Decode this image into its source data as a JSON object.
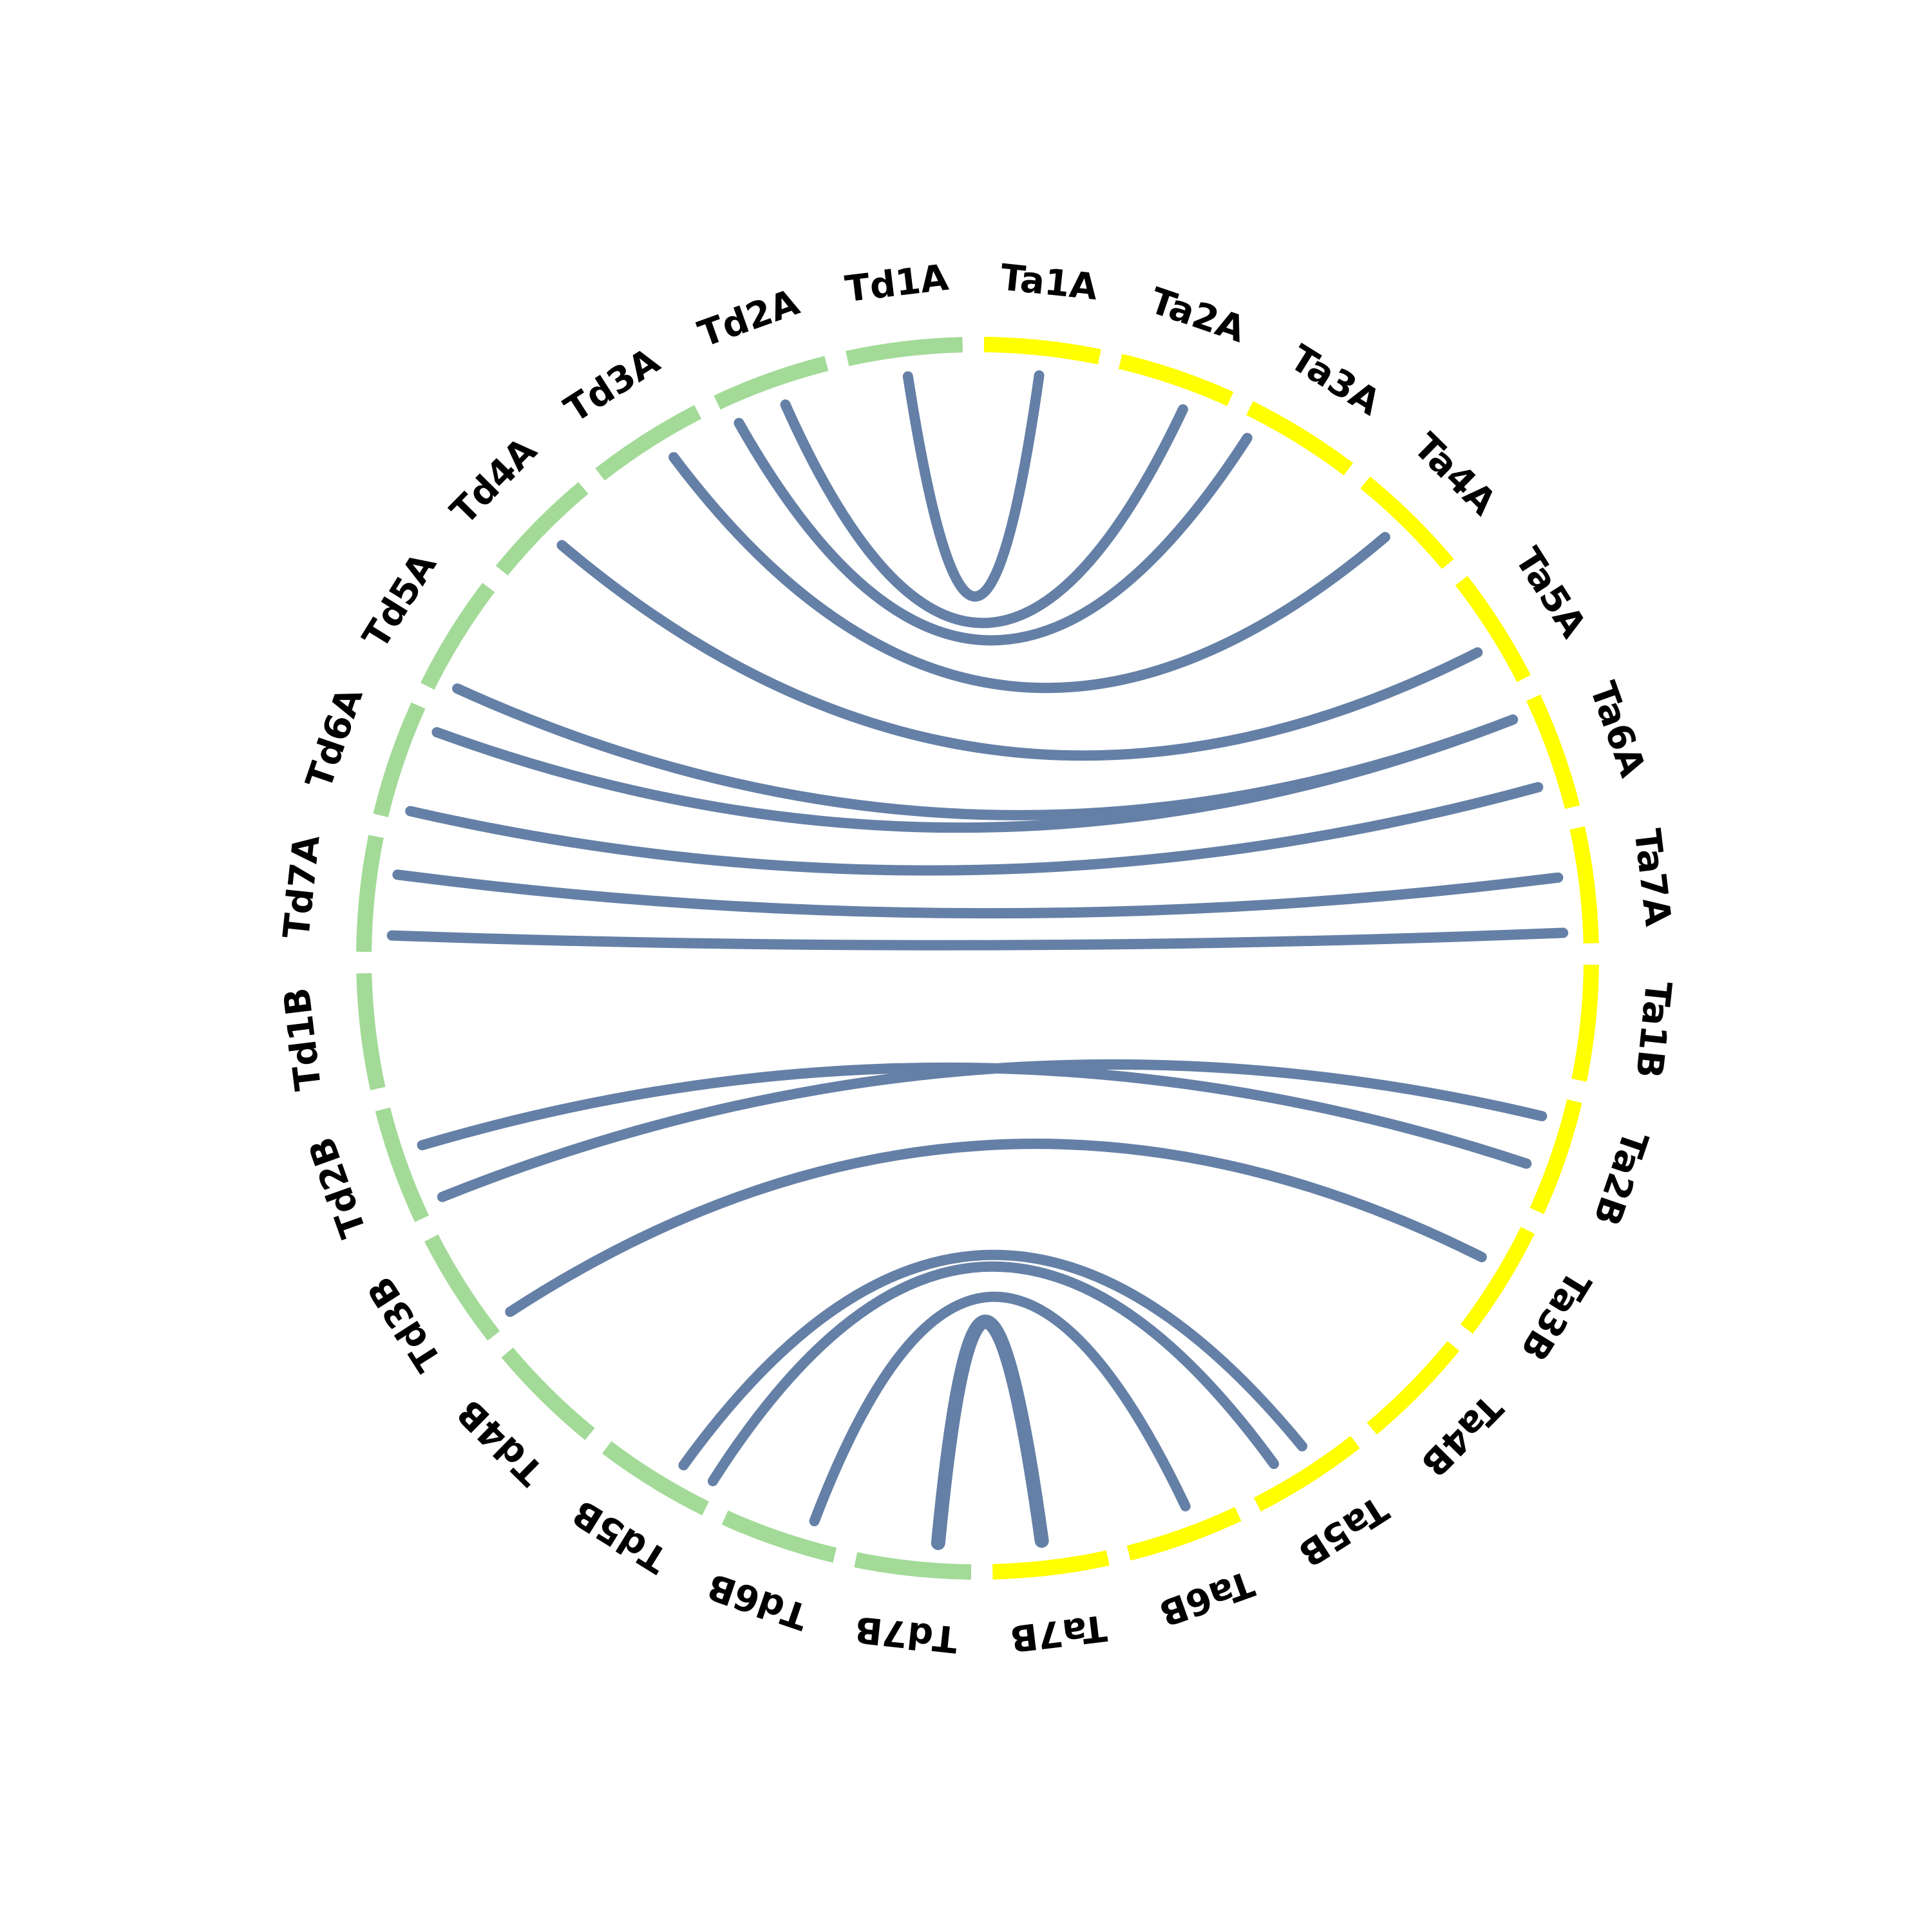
{
  "colors": {
    "td_segment": "#a3da98",
    "ta_segment": "#ffff00",
    "link": "#6580a6",
    "label": "#000000",
    "background": "#ffffff"
  },
  "segments": [
    {
      "label": "Ta1A",
      "group": "ta"
    },
    {
      "label": "Ta2A",
      "group": "ta"
    },
    {
      "label": "Ta3A",
      "group": "ta"
    },
    {
      "label": "Ta4A",
      "group": "ta"
    },
    {
      "label": "Ta5A",
      "group": "ta"
    },
    {
      "label": "Ta6A",
      "group": "ta"
    },
    {
      "label": "Ta7A",
      "group": "ta"
    },
    {
      "label": "Ta1B",
      "group": "ta"
    },
    {
      "label": "Ta2B",
      "group": "ta"
    },
    {
      "label": "Ta3B",
      "group": "ta"
    },
    {
      "label": "Ta4B",
      "group": "ta"
    },
    {
      "label": "Ta5B",
      "group": "ta"
    },
    {
      "label": "Ta6B",
      "group": "ta"
    },
    {
      "label": "Ta7B",
      "group": "ta"
    },
    {
      "label": "Td7B",
      "group": "td"
    },
    {
      "label": "Td6B",
      "group": "td"
    },
    {
      "label": "Td5B",
      "group": "td"
    },
    {
      "label": "Td4B",
      "group": "td"
    },
    {
      "label": "Td3B",
      "group": "td"
    },
    {
      "label": "Td2B",
      "group": "td"
    },
    {
      "label": "Td1B",
      "group": "td"
    },
    {
      "label": "Td7A",
      "group": "td"
    },
    {
      "label": "Td6A",
      "group": "td"
    },
    {
      "label": "Td5A",
      "group": "td"
    },
    {
      "label": "Td4A",
      "group": "td"
    },
    {
      "label": "Td3A",
      "group": "td"
    },
    {
      "label": "Td2A",
      "group": "td"
    },
    {
      "label": "Td1A",
      "group": "td"
    }
  ],
  "links": [
    {
      "from": "Td1A",
      "to": "Ta1A",
      "from_pos": 0.5,
      "to_pos": 0.5
    },
    {
      "from": "Td2A",
      "to": "Ta2A",
      "from_pos": 0.55,
      "to_pos": 0.65
    },
    {
      "from": "Td2A",
      "to": "Ta3A",
      "from_pos": 0.1,
      "to_pos": 0.1
    },
    {
      "from": "Td3A",
      "to": "Ta4A",
      "from_pos": 0.62,
      "to_pos": 0.45
    },
    {
      "from": "Td4A",
      "to": "Ta5A",
      "from_pos": 0.52,
      "to_pos": 0.6
    },
    {
      "from": "Td5A",
      "to": "Ta6A",
      "from_pos": 0.1,
      "to_pos": 0.1
    },
    {
      "from": "Td6A",
      "to": "Ta6A",
      "from_pos": 0.85,
      "to_pos": 0.1
    },
    {
      "from": "Td6A",
      "to": "Ta6A",
      "from_pos": 0.1,
      "to_pos": 0.75
    },
    {
      "from": "Td7A",
      "to": "Ta7A",
      "from_pos": 0.7,
      "to_pos": 0.4
    },
    {
      "from": "Td7A",
      "to": "Ta7A",
      "from_pos": 0.15,
      "to_pos": 0.9
    },
    {
      "from": "Td2B",
      "to": "Ta2B",
      "from_pos": 0.1,
      "to_pos": 0.2
    },
    {
      "from": "Td2B",
      "to": "Ta2B",
      "from_pos": 0.6,
      "to_pos": 0.65
    },
    {
      "from": "Td3B",
      "to": "Ta3B",
      "from_pos": 0.08,
      "to_pos": 0.4
    },
    {
      "from": "Td5B",
      "to": "Ta5B",
      "from_pos": 0.05,
      "to_pos": 0.7
    },
    {
      "from": "Td5B",
      "to": "Ta5B",
      "from_pos": 0.35,
      "to_pos": 0.4
    },
    {
      "from": "Td6B",
      "to": "Ta6B",
      "from_pos": 0.25,
      "to_pos": 0.4
    },
    {
      "from": "Td7B",
      "to": "Ta7B",
      "from_pos": 0.3,
      "to_pos": 0.55
    }
  ]
}
